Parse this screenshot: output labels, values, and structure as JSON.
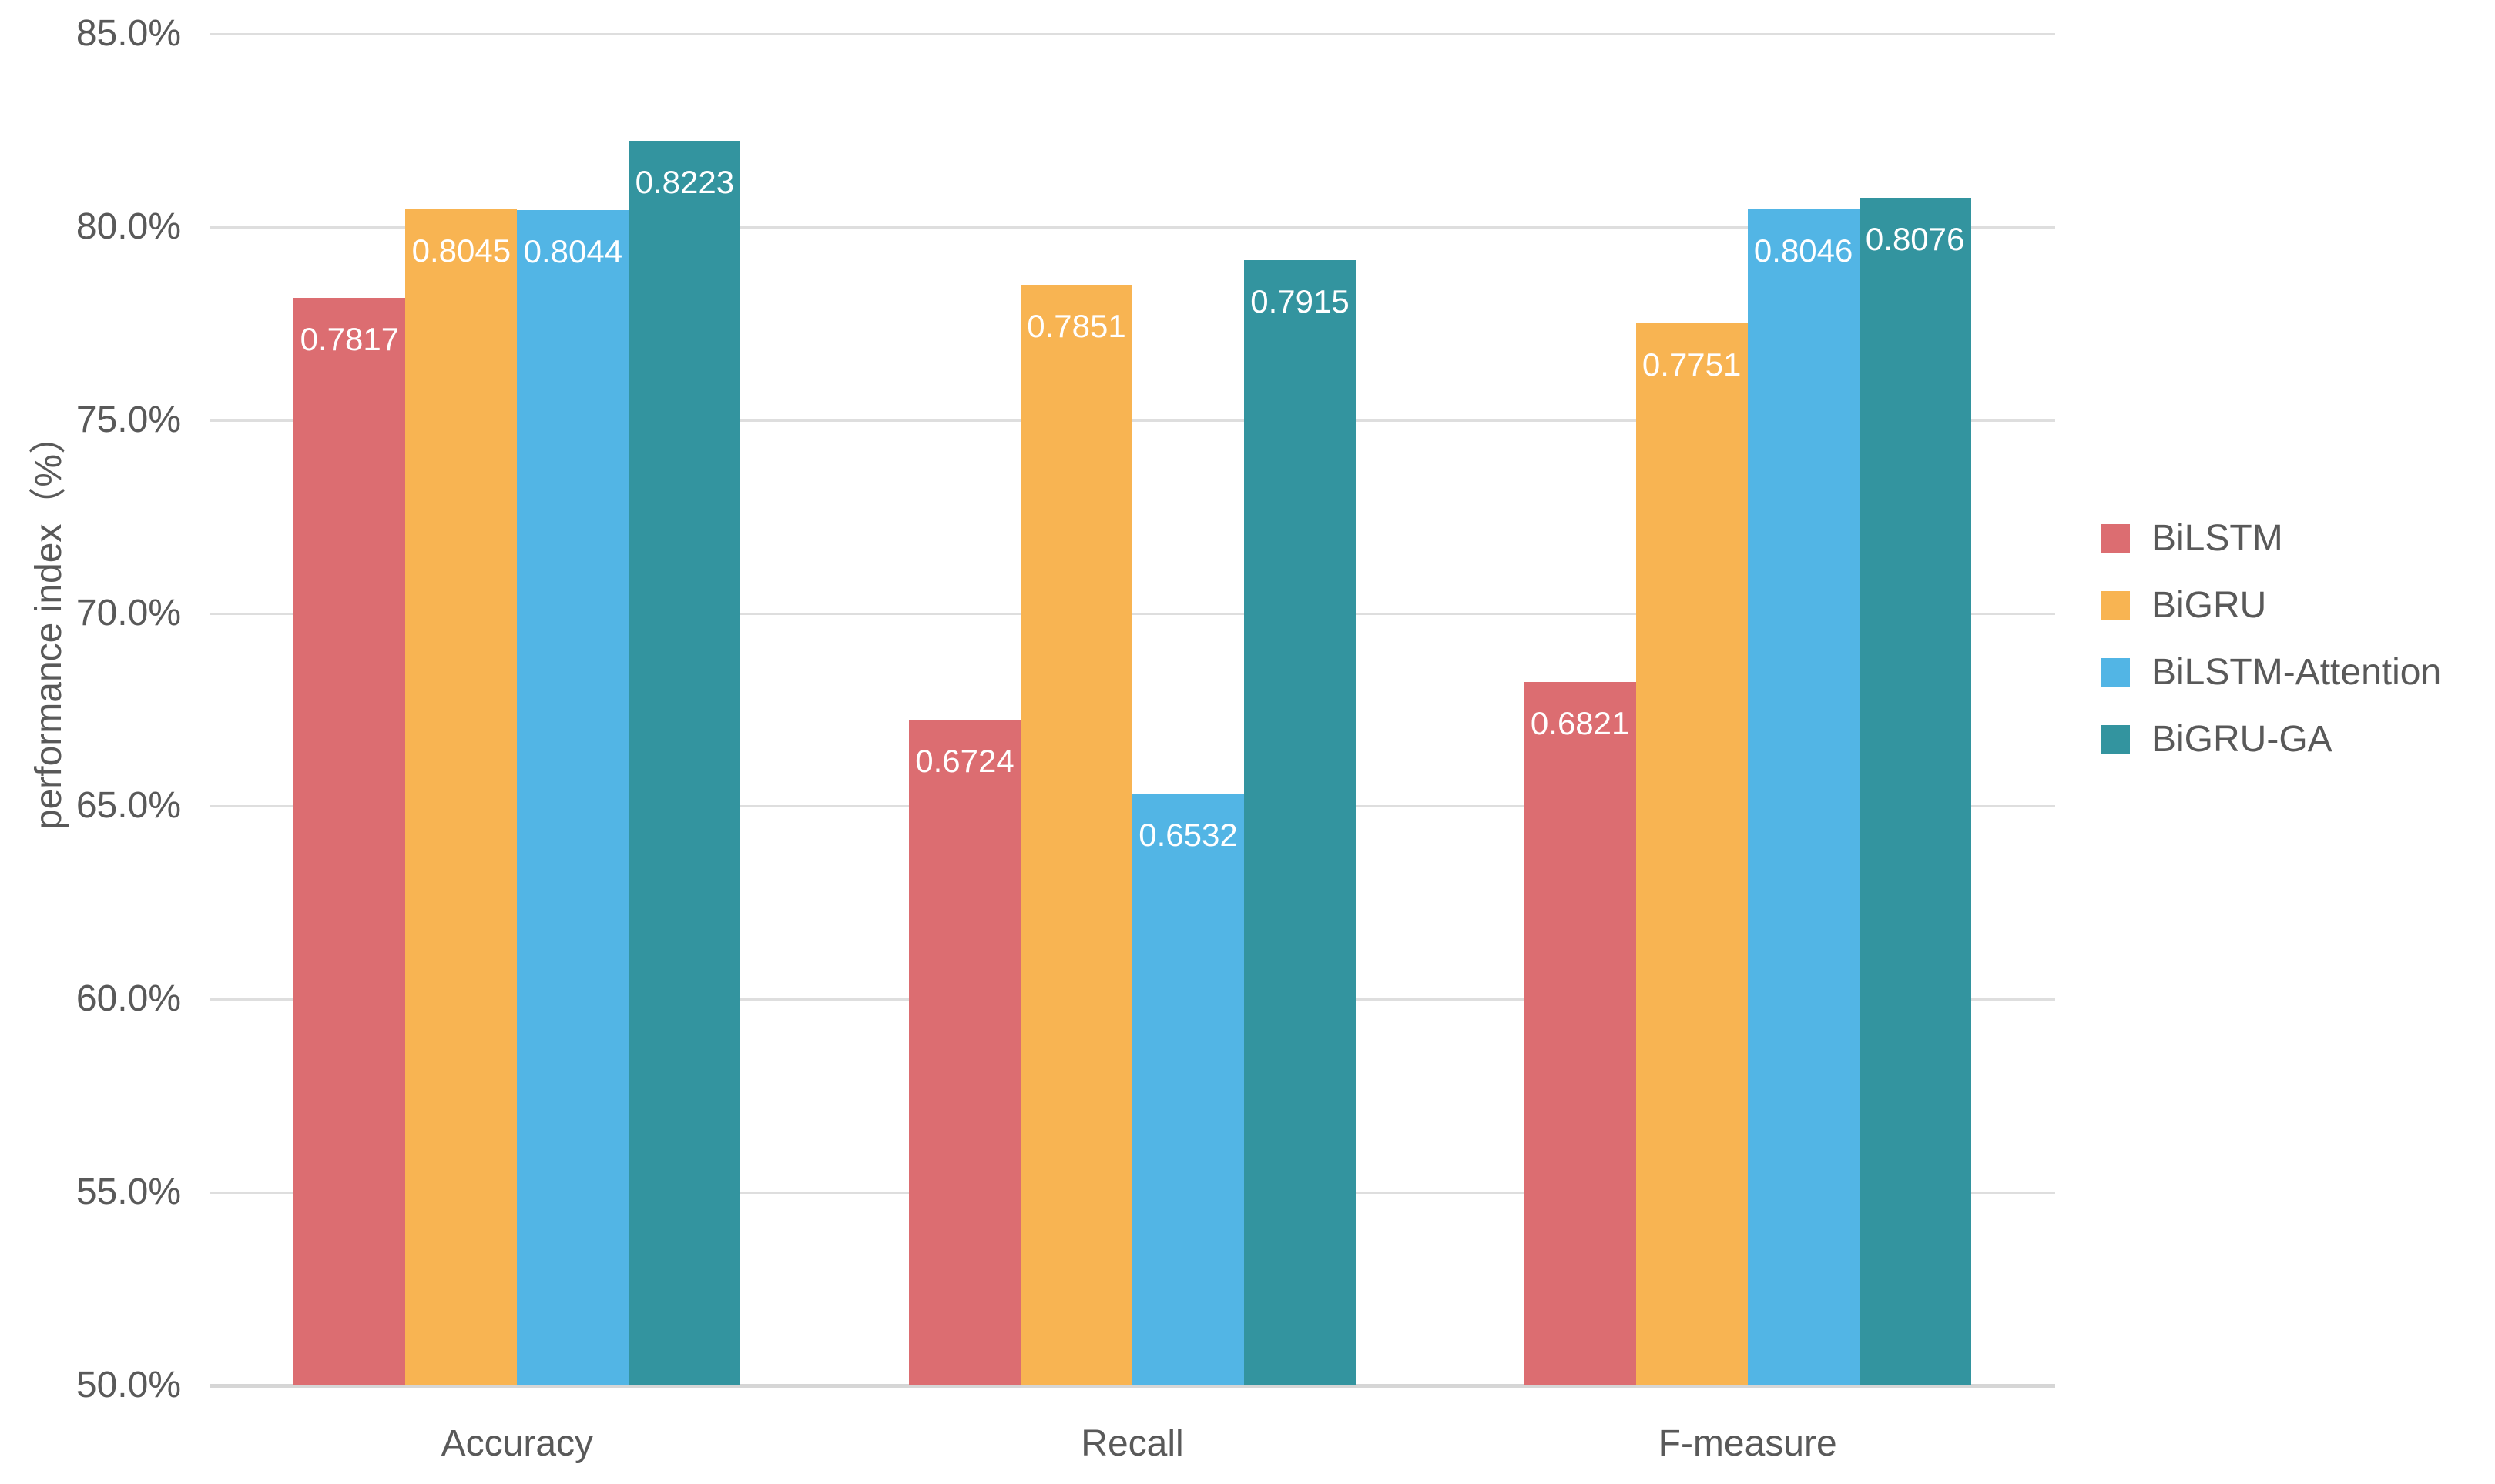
{
  "chart_data": {
    "type": "bar",
    "title": "",
    "ylabel": "performance index（%）",
    "xlabel": "",
    "categories": [
      "Accuracy",
      "Recall",
      "F-measure"
    ],
    "series": [
      {
        "name": "BiLSTM",
        "color": "#DC6D71",
        "values": [
          0.7817,
          0.6724,
          0.6821
        ],
        "labels": [
          "0.7817",
          "0.6724",
          "0.6821"
        ]
      },
      {
        "name": "BiGRU",
        "color": "#F8B452",
        "values": [
          0.8045,
          0.7851,
          0.7751
        ],
        "labels": [
          "0.8045",
          "0.7851",
          "0.7751"
        ]
      },
      {
        "name": "BiLSTM-Attention",
        "color": "#52B5E5",
        "values": [
          0.8044,
          0.6532,
          0.8046
        ],
        "labels": [
          "0.8044",
          "0.6532",
          "0.8046"
        ]
      },
      {
        "name": "BiGRU-GA",
        "color": "#33949F",
        "values": [
          0.8223,
          0.7915,
          0.8076
        ],
        "labels": [
          "0.8223",
          "0.7915",
          "0.8076"
        ]
      }
    ],
    "yaxis": {
      "min": 50,
      "max": 85,
      "step": 5,
      "tick_values": [
        85,
        80,
        75,
        70,
        65,
        60,
        55,
        50
      ],
      "tick_labels": [
        "85.0%",
        "80.0%",
        "75.0%",
        "70.0%",
        "65.0%",
        "60.0%",
        "55.0%",
        "50.0%"
      ]
    },
    "legend": {
      "position": "right",
      "items": [
        "BiLSTM",
        "BiGRU",
        "BiLSTM-Attention",
        "BiGRU-GA"
      ]
    },
    "grid": true,
    "colors": {
      "background": "#FFFFFF",
      "text": "#595959",
      "gridline": "#DEDEDE",
      "axis_line": "#D6D6D6",
      "bar_label_text": "#FFFFFF"
    }
  }
}
